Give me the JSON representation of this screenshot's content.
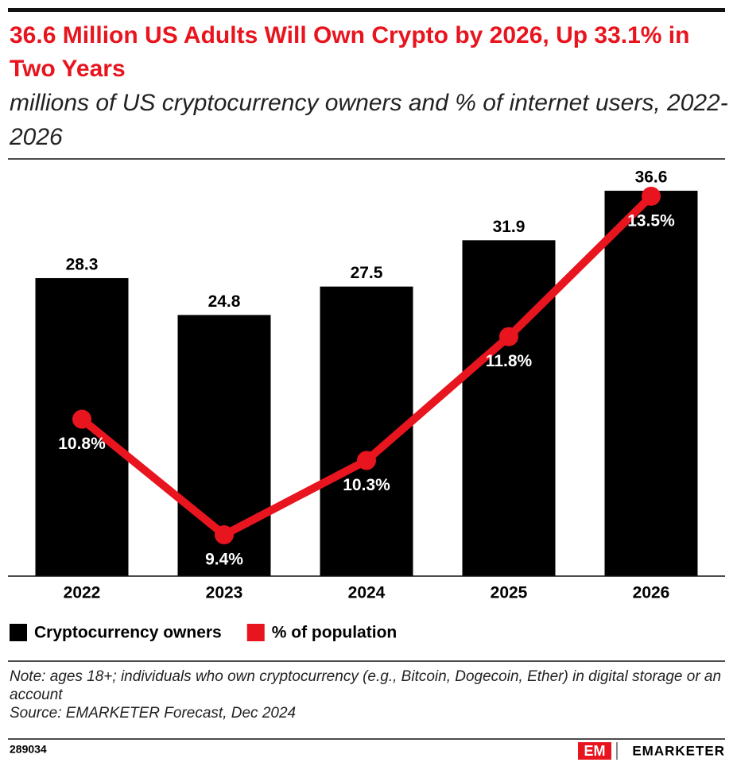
{
  "chart_data": {
    "type": "bar-line",
    "title": "36.6 Million US Adults Will Own Crypto by 2026, Up 33.1% in Two Years",
    "subtitle": "millions of US cryptocurrency owners and % of internet users, 2022-2026",
    "categories": [
      "2022",
      "2023",
      "2024",
      "2025",
      "2026"
    ],
    "series": [
      {
        "name": "Cryptocurrency owners",
        "type": "bar",
        "color": "#000000",
        "values": [
          28.3,
          24.8,
          27.5,
          31.9,
          36.6
        ]
      },
      {
        "name": "% of population",
        "type": "line",
        "axis": "y2",
        "color": "#e8141e",
        "values": [
          10.8,
          9.4,
          10.3,
          11.8,
          13.5
        ],
        "value_labels": [
          "10.8%",
          "9.4%",
          "10.3%",
          "11.8%",
          "13.5%"
        ]
      }
    ],
    "ylim": [
      0,
      40
    ],
    "y2lim": [
      8.9,
      14.0
    ],
    "grid": false,
    "legend": "bottom-left"
  },
  "note": "Note: ages 18+; individuals who own cryptocurrency (e.g., Bitcoin, Dogecoin, Ether) in digital storage or an account",
  "source": "Source: EMARKETER Forecast, Dec 2024",
  "chart_id": "289034",
  "brand": "EMARKETER"
}
